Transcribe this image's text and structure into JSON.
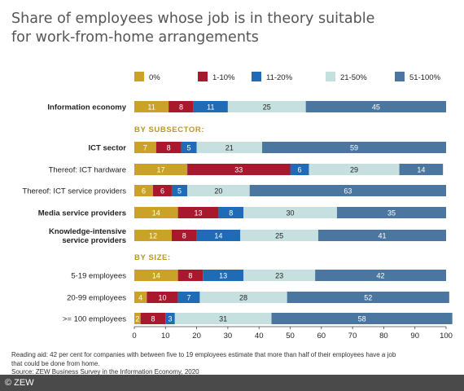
{
  "title_lines": [
    "Share of employees whose job is in theory suitable",
    "for work-from-home arrangements"
  ],
  "colors": {
    "0%": "#c9a227",
    "1-10%": "#a8192e",
    "11-20%": "#1f6bb5",
    "21-50%": "#c5e0df",
    "51-100%": "#4a76a0",
    "section_heading": "#b8962e"
  },
  "chart_data": {
    "type": "bar",
    "orientation": "horizontal",
    "stacked": true,
    "series_names": [
      "0%",
      "1-10%",
      "11-20%",
      "21-50%",
      "51-100%"
    ],
    "xlim": [
      0,
      100
    ],
    "xticks": [
      0,
      10,
      20,
      30,
      40,
      50,
      60,
      70,
      80,
      90,
      100
    ],
    "legend_position": "top",
    "rows": [
      {
        "label": [
          "Information economy"
        ],
        "bold": true,
        "values": [
          11,
          8,
          11,
          25,
          45
        ]
      },
      {
        "section": "BY SUBSECTOR:"
      },
      {
        "label": [
          "ICT sector"
        ],
        "bold": true,
        "values": [
          7,
          8,
          5,
          21,
          59
        ]
      },
      {
        "label": [
          "Thereof: ICT hardware"
        ],
        "bold": false,
        "values": [
          17,
          33,
          6,
          29,
          14
        ]
      },
      {
        "label": [
          "Thereof: ICT service providers"
        ],
        "bold": false,
        "values": [
          6,
          6,
          5,
          20,
          63
        ]
      },
      {
        "label": [
          "Media service providers"
        ],
        "bold": true,
        "values": [
          14,
          13,
          8,
          30,
          35
        ]
      },
      {
        "label": [
          "Knowledge-intensive",
          "service providers"
        ],
        "bold": true,
        "values": [
          12,
          8,
          14,
          25,
          41
        ]
      },
      {
        "section": "BY SIZE:"
      },
      {
        "label": [
          "5-19 employees"
        ],
        "bold": false,
        "values": [
          14,
          8,
          13,
          23,
          42
        ]
      },
      {
        "label": [
          "20-99 employees"
        ],
        "bold": false,
        "values": [
          4,
          10,
          7,
          28,
          52
        ]
      },
      {
        "label": [
          ">= 100 employees"
        ],
        "bold": false,
        "values": [
          2,
          8,
          3,
          31,
          58
        ]
      }
    ]
  },
  "notes": [
    "Reading aid: 42 per cent for companies with between five to 19 employees estimate that more than half of their employees have a job",
    "that could be done from home.",
    "Source: ZEW Business Survey in the Information Economy, 2020"
  ],
  "footer_text": "© ZEW"
}
